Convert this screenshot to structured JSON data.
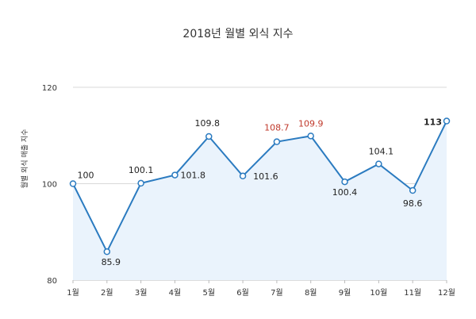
{
  "chart_data": {
    "type": "area",
    "title": "2018년 월별 외식 지수",
    "xlabel": "",
    "ylabel": "월별 외식 매출 지수",
    "categories": [
      "1월",
      "2월",
      "3월",
      "4월",
      "5월",
      "6월",
      "7월",
      "8월",
      "9월",
      "10월",
      "11월",
      "12월"
    ],
    "values": [
      100,
      85.9,
      100.1,
      101.8,
      109.8,
      101.6,
      108.7,
      109.9,
      100.4,
      104.1,
      98.6,
      113
    ],
    "data_labels": [
      "100",
      "85.9",
      "100.1",
      "101.8",
      "109.8",
      "101.6",
      "108.7",
      "109.9",
      "100.4",
      "104.1",
      "98.6",
      "113"
    ],
    "highlight_indices": [
      6,
      7
    ],
    "yticks": [
      "80",
      "100",
      "120"
    ],
    "ylim": [
      80,
      120
    ],
    "grid": true,
    "legend": "none",
    "colors": {
      "line": "#2b7bc0",
      "fill": "#eaf3fc",
      "marker_fill": "#ffffff",
      "label": "#222222",
      "highlight_label": "#c0392b"
    }
  }
}
